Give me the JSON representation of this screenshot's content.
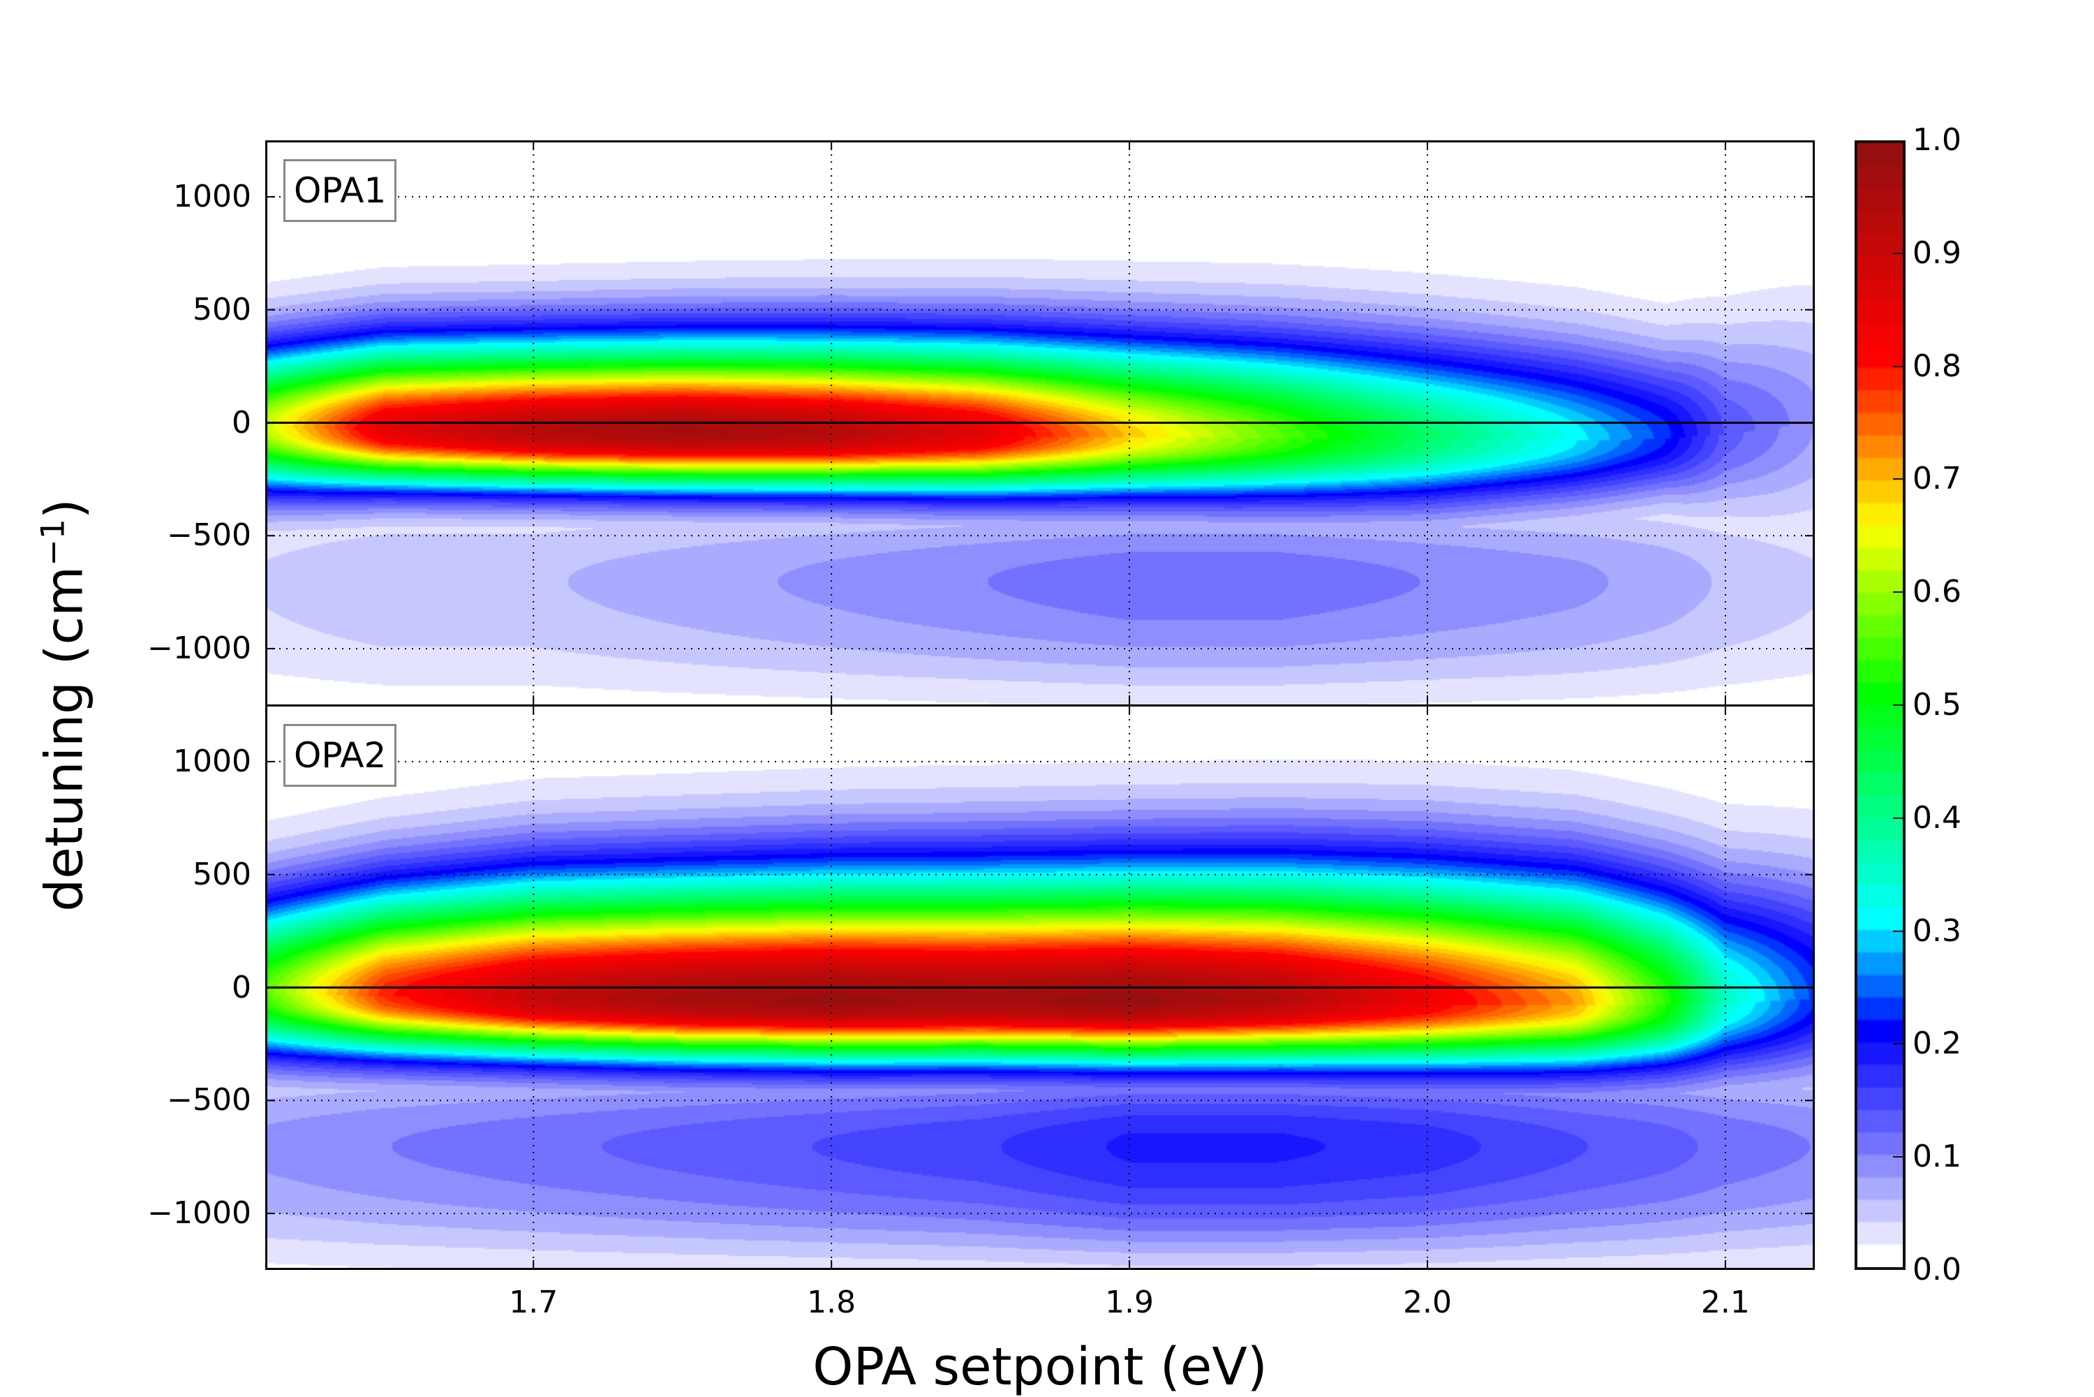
{
  "chart_data": {
    "type": "heatmap",
    "xlabel": "OPA setpoint  (eV)",
    "ylabel": "detuning  (cm",
    "ylabel_superscript": "−1",
    "ylabel_close": ")",
    "xlim": [
      1.61,
      2.13
    ],
    "ylim": [
      -1250,
      1250
    ],
    "xticks": [
      "1.7",
      "1.8",
      "1.9",
      "2.0",
      "2.1"
    ],
    "xtick_values": [
      1.7,
      1.8,
      1.9,
      2.0,
      2.1
    ],
    "yticks": [
      "1000",
      "500",
      "0",
      "−500",
      "−1000"
    ],
    "ytick_values": [
      1000,
      500,
      0,
      -500,
      -1000
    ],
    "grid": true,
    "zero_line": true,
    "colorbar": {
      "range": [
        0.0,
        1.0
      ],
      "ticks": [
        "1.0",
        "0.9",
        "0.8",
        "0.7",
        "0.6",
        "0.5",
        "0.4",
        "0.3",
        "0.2",
        "0.1",
        "0.0"
      ],
      "tick_values": [
        1.0,
        0.9,
        0.8,
        0.7,
        0.6,
        0.5,
        0.4,
        0.3,
        0.2,
        0.1,
        0.0
      ],
      "colormap": [
        [
          0.0,
          "#ffffff"
        ],
        [
          0.1,
          "#7272ff"
        ],
        [
          0.2,
          "#0000ff"
        ],
        [
          0.3,
          "#00ffff"
        ],
        [
          0.5,
          "#00ff00"
        ],
        [
          0.65,
          "#ffff00"
        ],
        [
          0.8,
          "#ff0000"
        ],
        [
          1.0,
          "#8b1010"
        ]
      ]
    },
    "panels": [
      {
        "label": "OPA1",
        "profile_columns": [
          "setpoint_eV",
          "peak_intensity",
          "peak_detuning",
          "width_above",
          "width_below",
          "background_below"
        ],
        "profile": [
          [
            1.61,
            0.62,
            -20,
            240,
            190,
            0.03
          ],
          [
            1.65,
            0.85,
            -35,
            260,
            165,
            0.04
          ],
          [
            1.7,
            0.93,
            -45,
            265,
            160,
            0.04
          ],
          [
            1.75,
            0.96,
            -50,
            270,
            160,
            0.05
          ],
          [
            1.8,
            0.93,
            -55,
            275,
            160,
            0.06
          ],
          [
            1.85,
            0.85,
            -60,
            280,
            165,
            0.07
          ],
          [
            1.9,
            0.68,
            -65,
            285,
            170,
            0.08
          ],
          [
            1.95,
            0.55,
            -70,
            290,
            180,
            0.08
          ],
          [
            2.0,
            0.42,
            -80,
            290,
            185,
            0.07
          ],
          [
            2.05,
            0.3,
            -80,
            280,
            175,
            0.06
          ],
          [
            2.08,
            0.22,
            -70,
            260,
            170,
            0.05
          ],
          [
            2.1,
            0.13,
            -50,
            300,
            220,
            0.04
          ],
          [
            2.13,
            0.08,
            0,
            350,
            300,
            0.03
          ]
        ]
      },
      {
        "label": "OPA2",
        "profile_columns": [
          "setpoint_eV",
          "peak_intensity",
          "peak_detuning",
          "width_above",
          "width_below",
          "background_below"
        ],
        "profile": [
          [
            1.61,
            0.55,
            -30,
            290,
            185,
            0.06
          ],
          [
            1.65,
            0.78,
            -40,
            320,
            175,
            0.07
          ],
          [
            1.7,
            0.9,
            -55,
            350,
            170,
            0.08
          ],
          [
            1.75,
            0.95,
            -65,
            360,
            170,
            0.09
          ],
          [
            1.8,
            0.97,
            -70,
            370,
            170,
            0.1
          ],
          [
            1.85,
            0.95,
            -70,
            375,
            170,
            0.11
          ],
          [
            1.9,
            0.97,
            -75,
            380,
            170,
            0.13
          ],
          [
            1.95,
            0.92,
            -70,
            385,
            175,
            0.13
          ],
          [
            2.0,
            0.82,
            -75,
            390,
            180,
            0.12
          ],
          [
            2.05,
            0.7,
            -80,
            385,
            185,
            0.1
          ],
          [
            2.08,
            0.52,
            -80,
            370,
            190,
            0.09
          ],
          [
            2.1,
            0.34,
            -70,
            360,
            200,
            0.08
          ],
          [
            2.13,
            0.22,
            -50,
            370,
            220,
            0.07
          ]
        ]
      }
    ]
  }
}
